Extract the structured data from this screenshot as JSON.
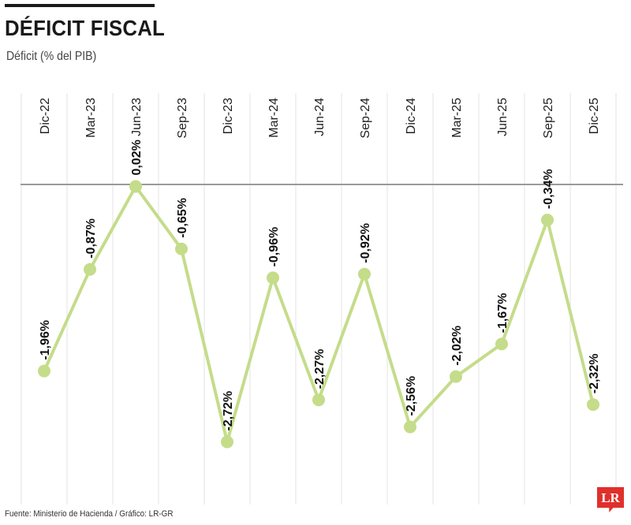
{
  "header": {
    "title": "DÉFICIT FISCAL",
    "subtitle": "Déficit (% del PIB)"
  },
  "footer": {
    "source": "Fuente: Ministerio de Hacienda / Gráfico: LR-GR",
    "logo_text": "LR"
  },
  "colors": {
    "line": "#c5dc8a",
    "marker": "#c5dc8a",
    "logo": "#e0302b"
  },
  "chart_data": {
    "type": "line",
    "title": "DÉFICIT FISCAL",
    "ylabel": "Déficit (% del PIB)",
    "xlabel": "",
    "categories": [
      "Dic-22",
      "Mar-23",
      "Jun-23",
      "Sep-23",
      "Dic-23",
      "Mar-24",
      "Jun-24",
      "Sep-24",
      "Dic-24",
      "Mar-25",
      "Jun-25",
      "Sep-25",
      "Dic-25"
    ],
    "values": [
      -1.96,
      -0.87,
      0.02,
      -0.65,
      -2.72,
      -0.96,
      -2.27,
      -0.92,
      -2.56,
      -2.02,
      -1.67,
      -0.34,
      -2.32
    ],
    "data_labels": [
      "-1,96%",
      "-0,87%",
      "0,02%",
      "-0,65%",
      "-2,72%",
      "-0,96%",
      "-2,27%",
      "-0,92%",
      "-2,56%",
      "-2,02%",
      "-1,67%",
      "-0,34%",
      "-2,32%"
    ],
    "ylim": [
      -2.8,
      0.05
    ],
    "grid": "vertical",
    "legend": "none"
  }
}
